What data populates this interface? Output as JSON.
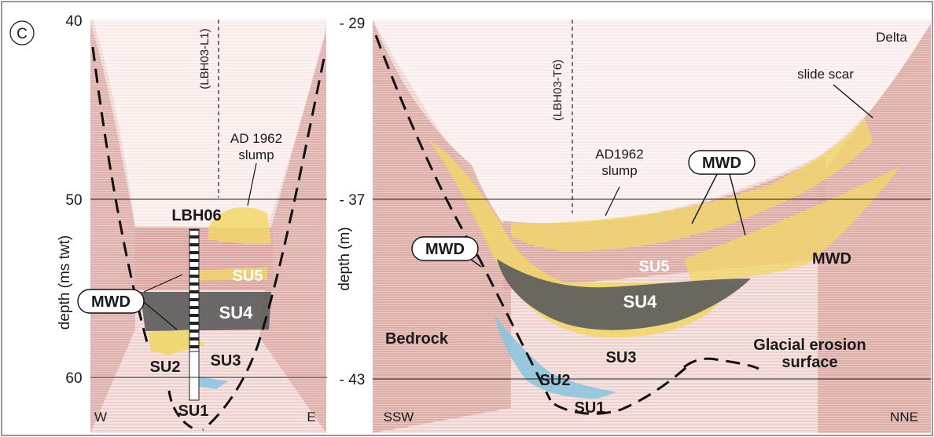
{
  "panel_letter": "C",
  "left_panel": {
    "axis_label": "depth (ms twt)",
    "ticks": [
      "40",
      "50",
      "60"
    ],
    "core_label": "(LBH03-L1)",
    "borehole_label": "LBH06",
    "slump_label_line1": "AD 1962",
    "slump_label_line2": "slump",
    "mwd_label": "MWD",
    "units": {
      "su5": "SU5",
      "su4": "SU4",
      "su3": "SU3",
      "su2": "SU2",
      "su1": "SU1"
    },
    "west_label": "W",
    "east_label": "E"
  },
  "right_panel": {
    "axis_label": "depth (m)",
    "ticks": [
      "- 29",
      "- 37",
      "- 43"
    ],
    "core_label": "(LBH03-T6)",
    "delta_label": "Delta",
    "slide_scar_label": "slide scar",
    "slump_label_line1": "AD1962",
    "slump_label_line2": "slump",
    "mwd_label_box1": "MWD",
    "mwd_label_box2": "MWD",
    "mwd_label_plain": "MWD",
    "bedrock_label": "Bedrock",
    "glacial_label_line1": "Glacial erosion",
    "glacial_label_line2": "surface",
    "units": {
      "su5": "SU5",
      "su4": "SU4",
      "su3": "SU3",
      "su2": "SU2",
      "su1": "SU1"
    },
    "ssw_label": "SSW",
    "nne_label": "NNE"
  },
  "colors": {
    "seismic_pink": "#f2d8d6",
    "reflector_red": "#b84a42",
    "mwd_yellow": "#f1d66a",
    "su4_grey": "#5b5b5b",
    "su2_blue": "#8ec4dd",
    "frame": "#555555"
  }
}
